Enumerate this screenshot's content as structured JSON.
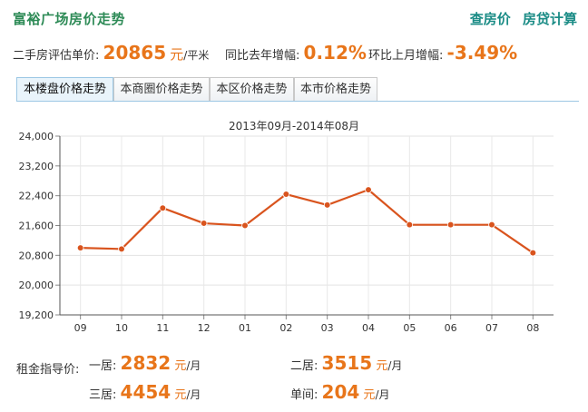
{
  "header": {
    "title": "富裕广场房价走势",
    "links": [
      "查房价",
      "房贷计算"
    ]
  },
  "summary": {
    "price_label": "二手房评估单价:",
    "price_value": "20865",
    "price_unit_yuan": "元",
    "price_unit_area": "/平米",
    "yoy_label": "同比去年增幅:",
    "yoy_value": "0.12%",
    "mom_label": "环比上月增幅:",
    "mom_value": "-3.49%"
  },
  "tabs": [
    "本楼盘价格走势",
    "本商圈价格走势",
    "本区价格走势",
    "本市价格走势"
  ],
  "active_tab": 0,
  "chart_data": {
    "type": "line",
    "title": "2013年09月-2014年08月",
    "categories": [
      "09",
      "10",
      "11",
      "12",
      "01",
      "02",
      "03",
      "04",
      "05",
      "06",
      "07",
      "08"
    ],
    "values": [
      21000,
      20970,
      22070,
      21660,
      21600,
      22440,
      22150,
      22560,
      21620,
      21620,
      21620,
      20865
    ],
    "ylim": [
      19200,
      24000
    ],
    "yticks": [
      "19,200",
      "20,000",
      "20,800",
      "21,600",
      "22,400",
      "23,200",
      "24,000"
    ],
    "ytick_values": [
      19200,
      20000,
      20800,
      21600,
      22400,
      23200,
      24000
    ],
    "line_color": "#d9541e",
    "grid": true
  },
  "rent": {
    "label": "租金指导价:",
    "items": [
      {
        "name": "一居:",
        "value": "2832",
        "unit": "元",
        "per": "/月"
      },
      {
        "name": "二居:",
        "value": "3515",
        "unit": "元",
        "per": "/月"
      },
      {
        "name": "三居:",
        "value": "4454",
        "unit": "元",
        "per": "/月"
      },
      {
        "name": "单间:",
        "value": "204",
        "unit": "元",
        "per": "/月"
      }
    ]
  }
}
